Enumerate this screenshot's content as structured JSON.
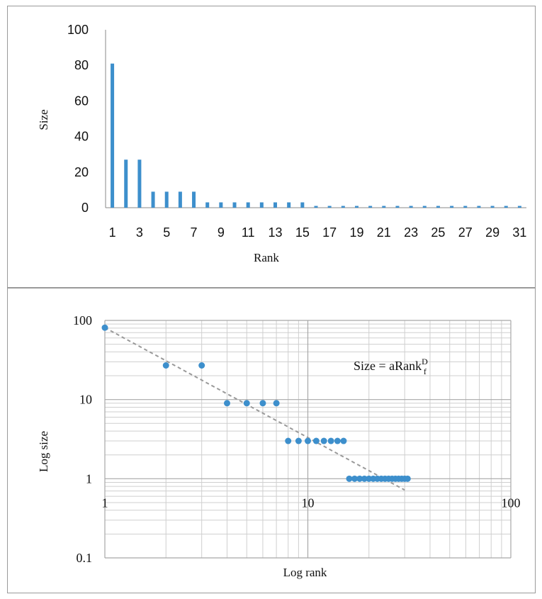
{
  "chart_data": [
    {
      "type": "bar",
      "xlabel": "Rank",
      "ylabel": "Size",
      "ylim": [
        0,
        100
      ],
      "yticks": [
        "0",
        "20",
        "40",
        "60",
        "80",
        "100"
      ],
      "xtick_labels": [
        "1",
        "3",
        "5",
        "7",
        "9",
        "11",
        "13",
        "15",
        "17",
        "19",
        "21",
        "23",
        "25",
        "27",
        "29",
        "31"
      ],
      "categories": [
        1,
        2,
        3,
        4,
        5,
        6,
        7,
        8,
        9,
        10,
        11,
        12,
        13,
        14,
        15,
        16,
        17,
        18,
        19,
        20,
        21,
        22,
        23,
        24,
        25,
        26,
        27,
        28,
        29,
        30,
        31
      ],
      "values": [
        81,
        27,
        27,
        9,
        9,
        9,
        9,
        3,
        3,
        3,
        3,
        3,
        3,
        3,
        3,
        1,
        1,
        1,
        1,
        1,
        1,
        1,
        1,
        1,
        1,
        1,
        1,
        1,
        1,
        1,
        1
      ],
      "color": "#3d8fcc",
      "grid": false
    },
    {
      "type": "scatter",
      "xlabel": "Log rank",
      "ylabel": "Log size",
      "x_scale": "log",
      "y_scale": "log",
      "xlim": [
        1,
        100
      ],
      "ylim": [
        0.1,
        100
      ],
      "xticks": [
        "1",
        "10",
        "100"
      ],
      "yticks": [
        "0.1",
        "1",
        "10",
        "100"
      ],
      "x": [
        1,
        2,
        3,
        4,
        5,
        6,
        7,
        8,
        9,
        10,
        11,
        12,
        13,
        14,
        15,
        16,
        17,
        18,
        19,
        20,
        21,
        22,
        23,
        24,
        25,
        26,
        27,
        28,
        29,
        30,
        31
      ],
      "y": [
        81,
        27,
        27,
        9,
        9,
        9,
        9,
        3,
        3,
        3,
        3,
        3,
        3,
        3,
        3,
        1,
        1,
        1,
        1,
        1,
        1,
        1,
        1,
        1,
        1,
        1,
        1,
        1,
        1,
        1,
        1
      ],
      "trendline": {
        "style": "dashed",
        "color": "#999999",
        "x": [
          1,
          30
        ],
        "y": [
          81,
          0.72
        ]
      },
      "annotation": {
        "main": "Size = aRank",
        "sup": "D",
        "sub": "f"
      },
      "color": "#3d8fcc",
      "grid": true
    }
  ]
}
